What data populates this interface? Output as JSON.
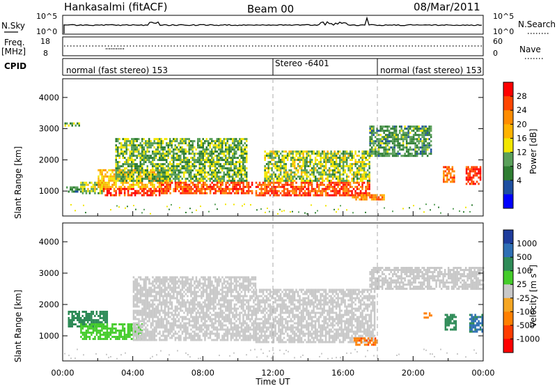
{
  "header": {
    "station": "Hankasalmi (fitACF)",
    "beam": "Beam 00",
    "date": "08/Mar/2011"
  },
  "status_panels": {
    "nsky_label": "N.Sky",
    "nsearch_label": "N.Search",
    "nsky_ticks": [
      "10^5",
      "10^0"
    ],
    "nsky_right_ticks": [
      "10^5",
      "10^0"
    ],
    "freq_label": "Freq.",
    "freq_unit": "[MHz]",
    "freq_ticks": [
      "18",
      "8"
    ],
    "nave_label": "Nave",
    "nave_ticks": [
      "60",
      "0"
    ],
    "cpid_label": "CPID",
    "cpid_segments": [
      {
        "label": "normal (fast stereo) 153",
        "start_hour": 0,
        "end_hour": 12
      },
      {
        "label": "Stereo -6401",
        "start_hour": 12,
        "end_hour": 18
      },
      {
        "label": "normal (fast stereo) 153",
        "start_hour": 18,
        "end_hour": 24
      }
    ]
  },
  "axes": {
    "ylabel": "Slant Range [km]",
    "xlabel": "Time UT",
    "yticks": [
      "4000",
      "3000",
      "2000",
      "1000"
    ],
    "xticks": [
      "00:00",
      "04:00",
      "08:00",
      "12:00",
      "16:00",
      "20:00",
      "00:00"
    ]
  },
  "colorbars": {
    "power": {
      "title": "Power",
      "unit": "[dB]",
      "labels": [
        "28",
        "24",
        "20",
        "16",
        "12",
        "8",
        "4"
      ],
      "colors": [
        "#ff0000",
        "#ff4500",
        "#ff8c00",
        "#ffb300",
        "#f2e600",
        "#5aa05a",
        "#2e7d32",
        "#1e4fa0",
        "#0000ff"
      ]
    },
    "velocity": {
      "title": "Velocity",
      "unit": "[m s",
      "unit_sup": "-1",
      "unit_end": "]",
      "labels": [
        "1000",
        "500",
        "100",
        "25",
        "-25",
        "-100",
        "-500",
        "-1000"
      ],
      "colors": [
        "#1e3c9c",
        "#2e6fb4",
        "#2e8b57",
        "#44cc2a",
        "#c8c8c8",
        "#f5a623",
        "#ff7f00",
        "#ff3c00",
        "#ff0000"
      ]
    }
  },
  "chart_data": {
    "type": "heatmap",
    "x_range_hours": [
      0,
      24
    ],
    "y_range_km": [
      200,
      4600
    ],
    "grid": false,
    "panels": [
      {
        "name": "power",
        "scale": "Power [dB]",
        "regions": [
          {
            "t_start": 0.1,
            "t_end": 0.9,
            "r_low": 3100,
            "r_high": 3200,
            "value": 10
          },
          {
            "t_start": 0.2,
            "t_end": 1.0,
            "r_low": 950,
            "r_high": 1150,
            "value": 8
          },
          {
            "t_start": 1.0,
            "t_end": 2.3,
            "r_low": 900,
            "r_high": 1300,
            "value": 12
          },
          {
            "t_start": 2.3,
            "t_end": 5.5,
            "r_low": 850,
            "r_high": 1100,
            "value": 28
          },
          {
            "t_start": 2.0,
            "t_end": 6.0,
            "r_low": 1100,
            "r_high": 1700,
            "value": 18
          },
          {
            "t_start": 3.0,
            "t_end": 10.5,
            "r_low": 1300,
            "r_high": 2700,
            "value": 10
          },
          {
            "t_start": 5.5,
            "t_end": 10.8,
            "r_low": 900,
            "r_high": 1300,
            "value": 26
          },
          {
            "t_start": 11.0,
            "t_end": 17.5,
            "r_low": 850,
            "r_high": 1300,
            "value": 26
          },
          {
            "t_start": 11.5,
            "t_end": 17.5,
            "r_low": 1300,
            "r_high": 2300,
            "value": 12
          },
          {
            "t_start": 16.5,
            "t_end": 18.3,
            "r_low": 700,
            "r_high": 900,
            "value": 22
          },
          {
            "t_start": 17.5,
            "t_end": 21.0,
            "r_low": 2100,
            "r_high": 3100,
            "value": 8
          },
          {
            "t_start": 21.7,
            "t_end": 22.3,
            "r_low": 1300,
            "r_high": 1800,
            "value": 24
          },
          {
            "t_start": 23.0,
            "t_end": 23.8,
            "r_low": 1200,
            "r_high": 1800,
            "value": 28
          }
        ]
      },
      {
        "name": "velocity",
        "scale": "Velocity [m s-1]",
        "regions": [
          {
            "t_start": 0.3,
            "t_end": 2.5,
            "r_low": 1300,
            "r_high": 1800,
            "value": 200
          },
          {
            "t_start": 1.0,
            "t_end": 4.5,
            "r_low": 900,
            "r_high": 1400,
            "value": 60
          },
          {
            "t_start": 4.0,
            "t_end": 11.0,
            "r_low": 850,
            "r_high": 2900,
            "value": 0
          },
          {
            "t_start": 11.0,
            "t_end": 17.8,
            "r_low": 800,
            "r_high": 2500,
            "value": 0
          },
          {
            "t_start": 16.6,
            "t_end": 17.9,
            "r_low": 700,
            "r_high": 950,
            "value": -400
          },
          {
            "t_start": 17.5,
            "t_end": 24.0,
            "r_low": 2500,
            "r_high": 3200,
            "value": 0
          },
          {
            "t_start": 20.6,
            "t_end": 21.0,
            "r_low": 1550,
            "r_high": 1750,
            "value": -300
          },
          {
            "t_start": 21.8,
            "t_end": 22.4,
            "r_low": 1200,
            "r_high": 1700,
            "value": 300
          },
          {
            "t_start": 23.2,
            "t_end": 23.9,
            "r_low": 1100,
            "r_high": 1700,
            "value": 600
          }
        ]
      }
    ]
  }
}
